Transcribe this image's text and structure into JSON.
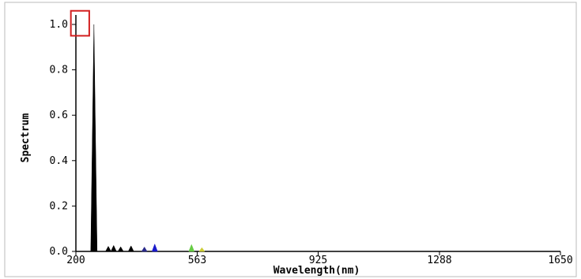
{
  "chart_data": {
    "type": "area",
    "title": "",
    "xlabel": "Wavelength(nm)",
    "ylabel": "Spectrum",
    "xlim": [
      200,
      1650
    ],
    "ylim": [
      0,
      1.0
    ],
    "x_ticks": [
      200,
      563,
      925,
      1288,
      1650
    ],
    "x_tick_labels": [
      "200",
      "563",
      "925",
      "1288",
      "1650"
    ],
    "y_ticks": [
      0,
      0.2,
      0.4,
      0.6,
      0.8,
      1.0
    ],
    "y_tick_labels": [
      "0.0",
      "0.2",
      "0.4",
      "0.6",
      "0.8",
      "1.0"
    ],
    "grid": false,
    "highlight_box": {
      "x_range": [
        185,
        240
      ],
      "y_range": [
        0.95,
        1.06
      ],
      "color": "#d32020"
    },
    "peaks": [
      {
        "x": 254,
        "y": 1.0,
        "color": "#000000"
      },
      {
        "x": 297,
        "y": 0.012,
        "color": "#000000"
      },
      {
        "x": 313,
        "y": 0.016,
        "color": "#000000"
      },
      {
        "x": 334,
        "y": 0.01,
        "color": "#000000"
      },
      {
        "x": 365,
        "y": 0.014,
        "color": "#000000"
      },
      {
        "x": 405,
        "y": 0.009,
        "color": "#2a2a8a"
      },
      {
        "x": 436,
        "y": 0.022,
        "color": "#1a1acc"
      },
      {
        "x": 546,
        "y": 0.02,
        "color": "#66cc44"
      },
      {
        "x": 577,
        "y": 0.006,
        "color": "#cccc33"
      }
    ]
  }
}
